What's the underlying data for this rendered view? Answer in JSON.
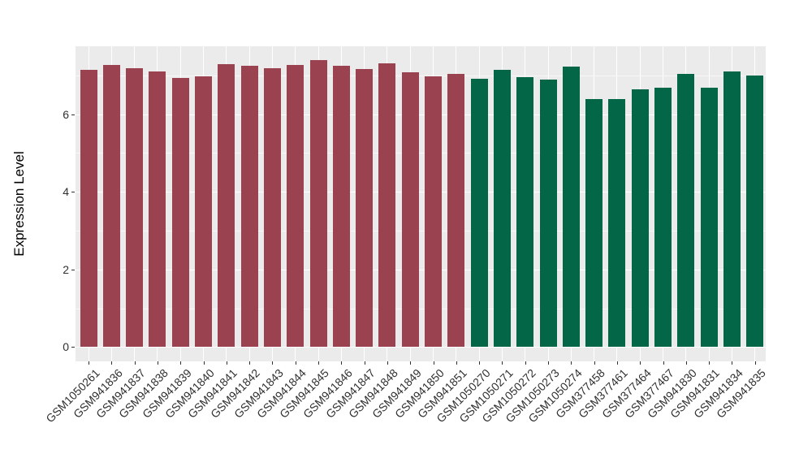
{
  "figure": {
    "background_color": "#FFFFFF",
    "panel_background_color": "#EBEBEB",
    "gridline_color": "#FFFFFF",
    "axis_text_color": "#303030",
    "axis_title_color": "#000000",
    "tick_mark_color": "#333333"
  },
  "chart_data": {
    "type": "bar",
    "title": "",
    "xlabel": "",
    "ylabel": "Expression Level",
    "ylim": [
      0,
      7.75
    ],
    "yticks": [
      0,
      2,
      4,
      6
    ],
    "yticks_minor": [
      1,
      3,
      5,
      7
    ],
    "grid": true,
    "legend": false,
    "categories": [
      "GSM1050261",
      "GSM941836",
      "GSM941837",
      "GSM941838",
      "GSM941839",
      "GSM941840",
      "GSM941841",
      "GSM941842",
      "GSM941843",
      "GSM941844",
      "GSM941845",
      "GSM941846",
      "GSM941847",
      "GSM941848",
      "GSM941849",
      "GSM941850",
      "GSM941851",
      "GSM1050270",
      "GSM1050271",
      "GSM1050272",
      "GSM1050273",
      "GSM1050274",
      "GSM377458",
      "GSM377461",
      "GSM377464",
      "GSM377467",
      "GSM941830",
      "GSM941831",
      "GSM941834",
      "GSM941835"
    ],
    "values": [
      7.14,
      7.27,
      7.19,
      7.1,
      6.93,
      6.97,
      7.29,
      7.24,
      7.19,
      7.28,
      7.4,
      7.24,
      7.17,
      7.31,
      7.08,
      6.98,
      7.05,
      6.91,
      7.15,
      6.96,
      6.9,
      7.22,
      6.4,
      6.4,
      6.64,
      6.68,
      7.04,
      6.69,
      7.1,
      6.99
    ],
    "bar_groups": [
      0,
      0,
      0,
      0,
      0,
      0,
      0,
      0,
      0,
      0,
      0,
      0,
      0,
      0,
      0,
      0,
      0,
      1,
      1,
      1,
      1,
      1,
      1,
      1,
      1,
      1,
      1,
      1,
      1,
      1
    ],
    "group_colors": [
      "#9B4251",
      "#036647"
    ]
  }
}
